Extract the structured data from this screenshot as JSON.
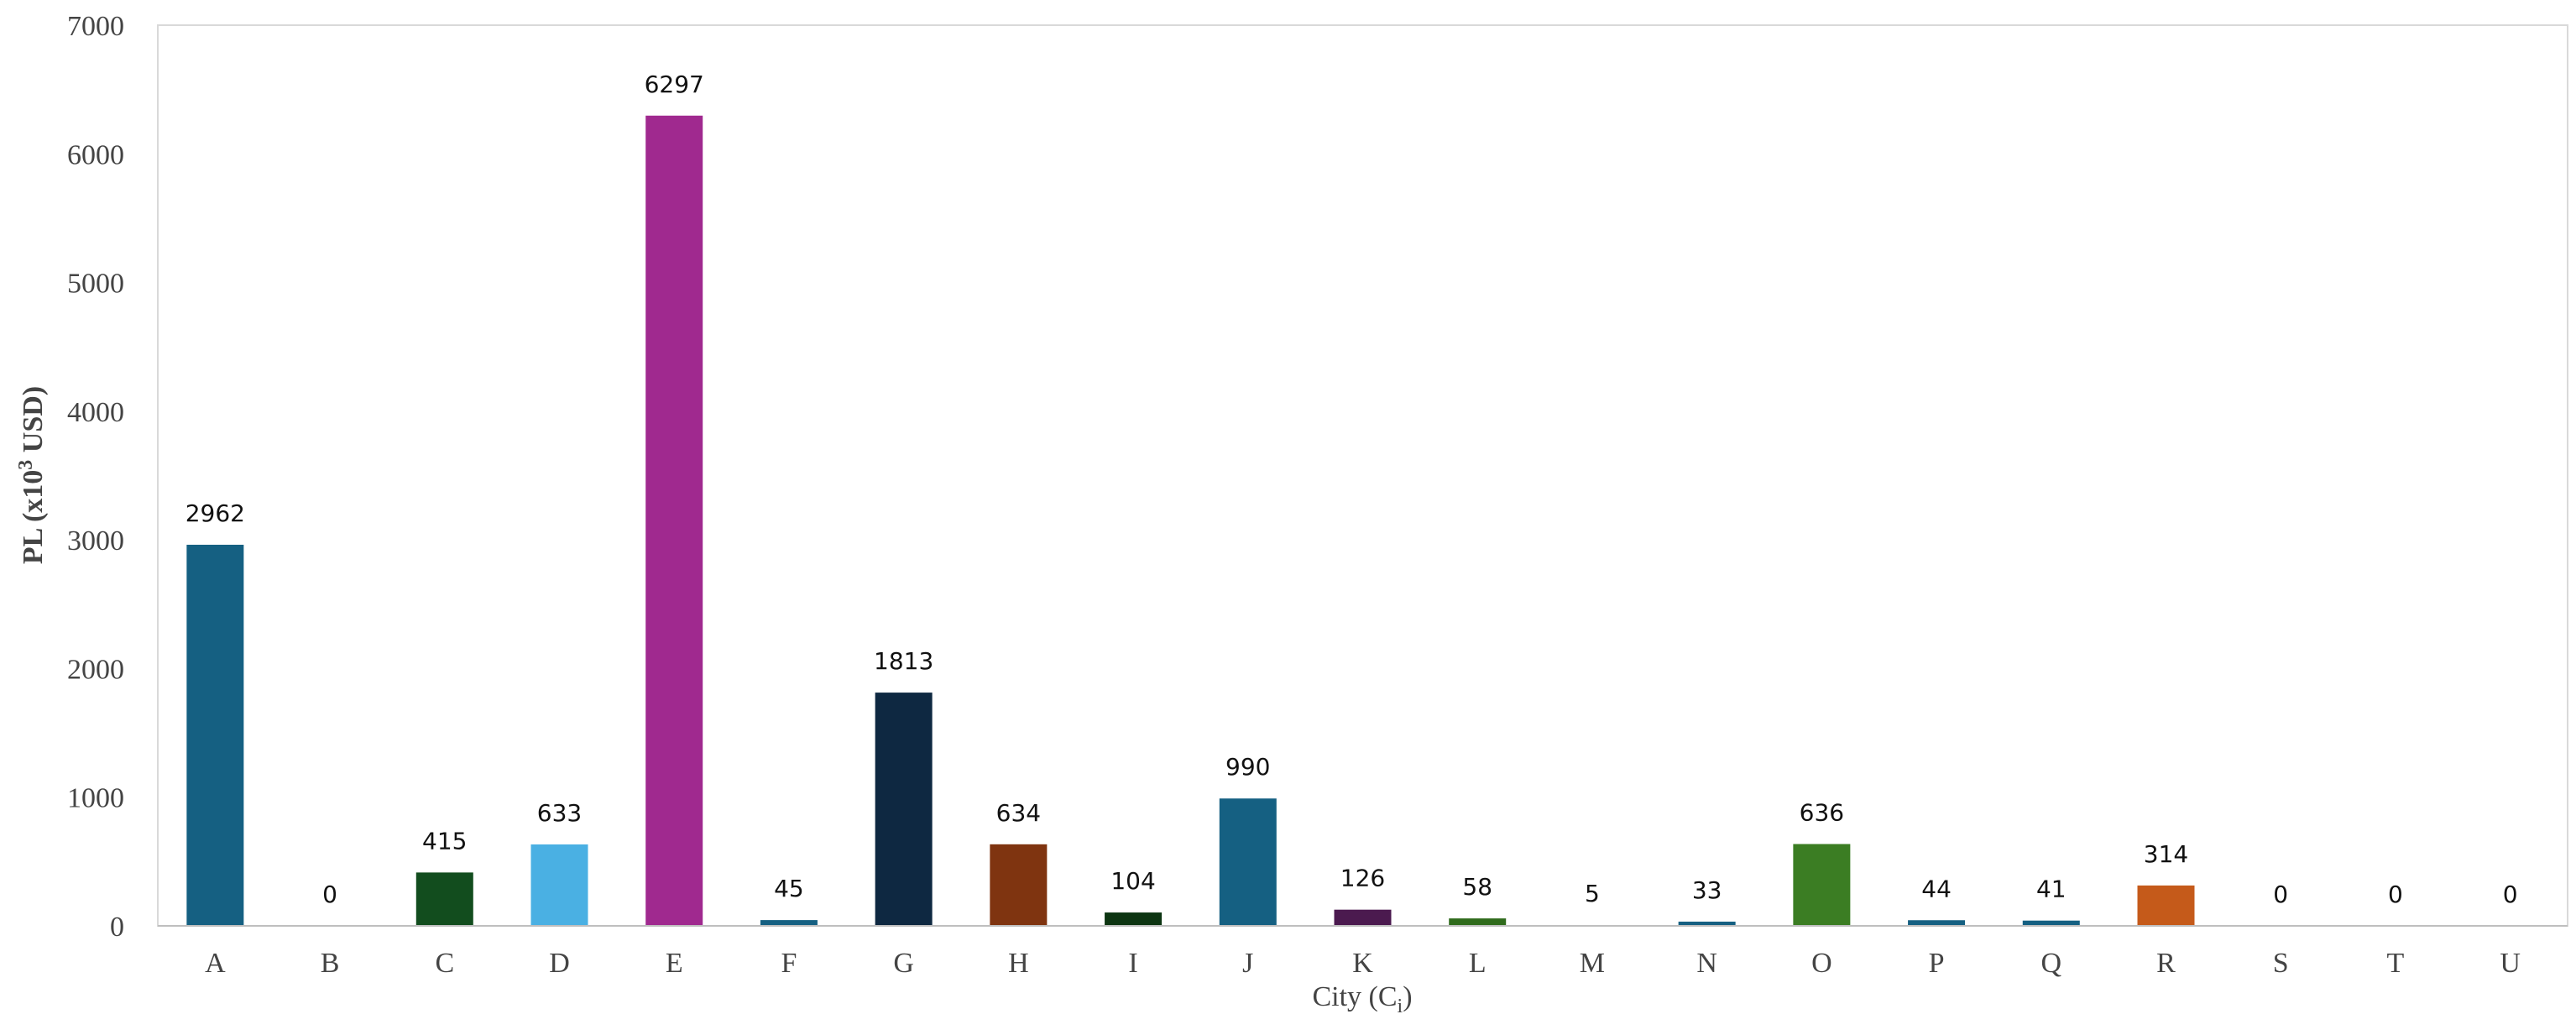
{
  "chart_data": {
    "type": "bar",
    "title": "",
    "xlabel": "City (C",
    "xlabel_sub": "i",
    "xlabel_end": ")",
    "ylabel": "PL (x10",
    "ylabel_sup": "3",
    "ylabel_end": " USD)",
    "ylim": [
      0,
      7000
    ],
    "yticks": [
      0,
      1000,
      2000,
      3000,
      4000,
      5000,
      6000,
      7000
    ],
    "grid": false,
    "categories": [
      "A",
      "B",
      "C",
      "D",
      "E",
      "F",
      "G",
      "H",
      "I",
      "J",
      "K",
      "L",
      "M",
      "N",
      "O",
      "P",
      "Q",
      "R",
      "S",
      "T",
      "U"
    ],
    "values": [
      2962,
      0,
      415,
      633,
      6297,
      45,
      1813,
      634,
      104,
      990,
      126,
      58,
      5,
      33,
      636,
      44,
      41,
      314,
      0,
      0,
      0
    ],
    "colors": [
      "#156082",
      "#156082",
      "#124d1e",
      "#4ab0e3",
      "#a0298f",
      "#156082",
      "#0e2841",
      "#7f3410",
      "#0d3512",
      "#156082",
      "#4b1a4f",
      "#2f6b1c",
      "#d9d9d9",
      "#156082",
      "#3b7d23",
      "#156082",
      "#156082",
      "#c55a1a",
      "#156082",
      "#156082",
      "#156082"
    ]
  }
}
